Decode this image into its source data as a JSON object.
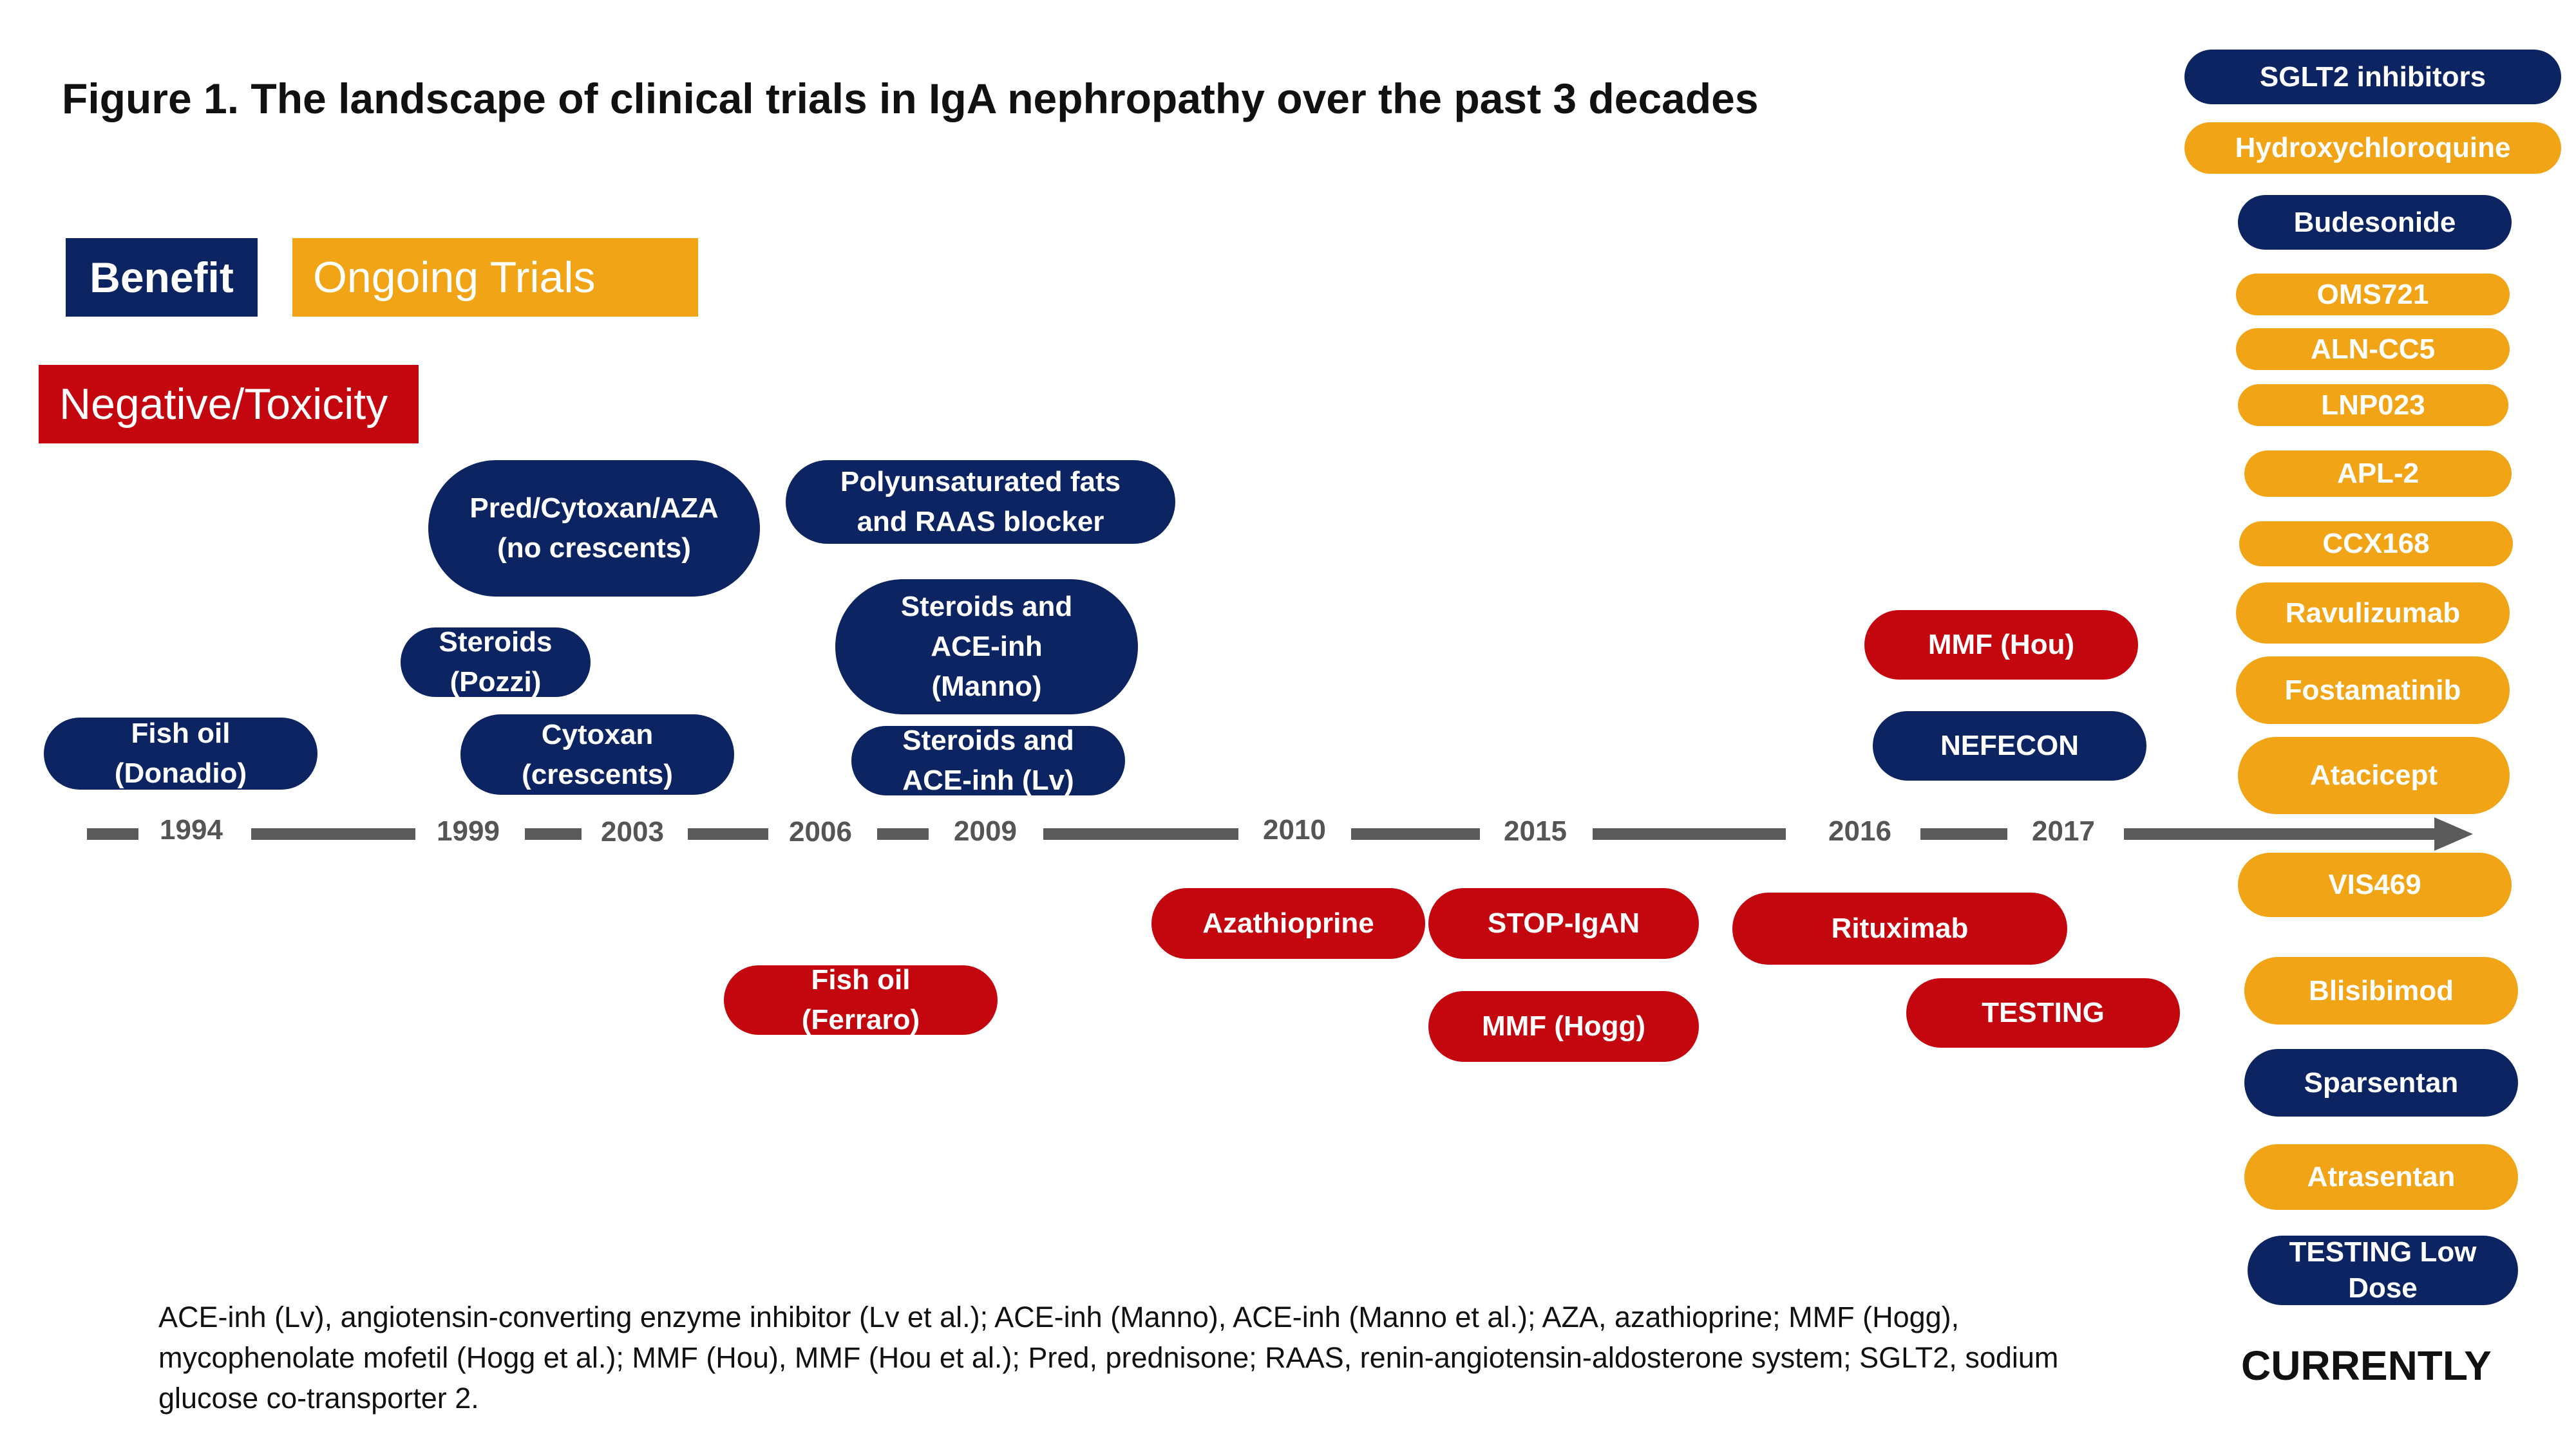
{
  "title": "Figure 1. The landscape of clinical trials in IgA nephropathy over the past 3 decades",
  "legend": {
    "benefit": "Benefit",
    "ongoing": "Ongoing Trials",
    "negative": "Negative/Toxicity"
  },
  "colors": {
    "benefit": "#0c2461",
    "ongoing": "#f2a417",
    "negative": "#c4060e",
    "timeline": "#5a5a5a"
  },
  "timeline": {
    "years": [
      "1994",
      "1999",
      "2003",
      "2006",
      "2009",
      "2010",
      "2015",
      "2016",
      "2017"
    ]
  },
  "trials": [
    {
      "label": "Fish oil\n(Donadio)",
      "category": "benefit"
    },
    {
      "label": "Pred/Cytoxan/AZA\n(no crescents)",
      "category": "benefit"
    },
    {
      "label": "Steroids\n(Pozzi)",
      "category": "benefit"
    },
    {
      "label": "Cytoxan\n(crescents)",
      "category": "benefit"
    },
    {
      "label": "Polyunsaturated fats\nand RAAS blocker",
      "category": "benefit"
    },
    {
      "label": "Steroids and\nACE-inh\n(Manno)",
      "category": "benefit"
    },
    {
      "label": "Steroids and\nACE-inh (Lv)",
      "category": "benefit"
    },
    {
      "label": "Fish oil\n(Ferraro)",
      "category": "negative"
    },
    {
      "label": "Azathioprine",
      "category": "negative"
    },
    {
      "label": "STOP-IgAN",
      "category": "negative"
    },
    {
      "label": "MMF (Hogg)",
      "category": "negative"
    },
    {
      "label": "MMF (Hou)",
      "category": "negative"
    },
    {
      "label": "NEFECON",
      "category": "benefit"
    },
    {
      "label": "Rituximab",
      "category": "negative"
    },
    {
      "label": "TESTING",
      "category": "negative"
    }
  ],
  "current": [
    {
      "label": "SGLT2 inhibitors",
      "category": "benefit"
    },
    {
      "label": "Hydroxychloroquine",
      "category": "ongoing"
    },
    {
      "label": "Budesonide",
      "category": "benefit"
    },
    {
      "label": "OMS721",
      "category": "ongoing"
    },
    {
      "label": "ALN-CC5",
      "category": "ongoing"
    },
    {
      "label": "LNP023",
      "category": "ongoing"
    },
    {
      "label": "APL-2",
      "category": "ongoing"
    },
    {
      "label": "CCX168",
      "category": "ongoing"
    },
    {
      "label": "Ravulizumab",
      "category": "ongoing"
    },
    {
      "label": "Fostamatinib",
      "category": "ongoing"
    },
    {
      "label": "Atacicept",
      "category": "ongoing"
    },
    {
      "label": "VIS469",
      "category": "ongoing"
    },
    {
      "label": "Blisibimod",
      "category": "ongoing"
    },
    {
      "label": "Sparsentan",
      "category": "benefit"
    },
    {
      "label": "Atrasentan",
      "category": "ongoing"
    },
    {
      "label": "TESTING Low\nDose",
      "category": "benefit"
    }
  ],
  "currently_label": "CURRENTLY",
  "footnote": "ACE-inh (Lv), angiotensin-converting enzyme inhibitor (Lv et al.); ACE-inh (Manno), ACE-inh (Manno et al.); AZA, azathioprine; MMF (Hogg), mycophenolate mofetil (Hogg et al.); MMF (Hou), MMF (Hou et al.); Pred, prednisone; RAAS, renin-angiotensin-aldosterone system; SGLT2, sodium glucose co-transporter 2."
}
